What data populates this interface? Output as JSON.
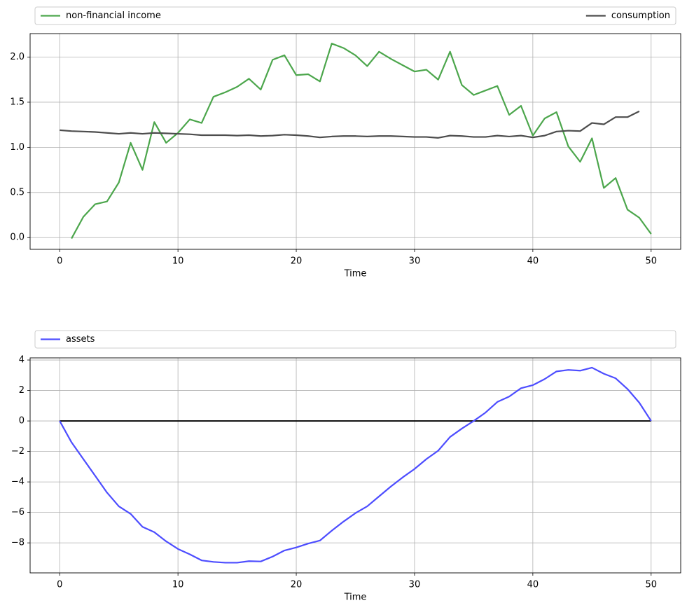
{
  "chart_data": [
    {
      "type": "line",
      "xlabel": "Time",
      "grid": true,
      "legend": "above-expand",
      "xlim": [
        -2.5,
        52.5
      ],
      "xticks": [
        0,
        10,
        20,
        30,
        40,
        50
      ],
      "ylim": [
        -0.13,
        2.26
      ],
      "yticks": [
        {
          "value": 0,
          "label": "0.0"
        },
        0.5,
        {
          "value": 1,
          "label": "1.0"
        },
        1.5,
        {
          "value": 2,
          "label": "2.0"
        }
      ],
      "x": [
        0,
        1,
        2,
        3,
        4,
        5,
        6,
        7,
        8,
        9,
        10,
        11,
        12,
        13,
        14,
        15,
        16,
        17,
        18,
        19,
        20,
        21,
        22,
        23,
        24,
        25,
        26,
        27,
        28,
        29,
        30,
        31,
        32,
        33,
        34,
        35,
        36,
        37,
        38,
        39,
        40,
        41,
        42,
        43,
        44,
        45,
        46,
        47,
        48,
        49,
        50
      ],
      "series": [
        {
          "name": "non-financial income",
          "color": "#4ca64c",
          "values": [
            null,
            -0.01,
            0.23,
            0.37,
            0.4,
            0.61,
            1.05,
            0.75,
            1.28,
            1.05,
            1.16,
            1.31,
            1.27,
            1.56,
            1.61,
            1.67,
            1.76,
            1.64,
            1.97,
            2.02,
            1.8,
            1.81,
            1.73,
            2.15,
            2.1,
            2.02,
            1.9,
            2.06,
            1.98,
            1.91,
            1.84,
            1.86,
            1.75,
            2.06,
            1.69,
            1.58,
            1.63,
            1.68,
            1.36,
            1.46,
            1.13,
            1.32,
            1.39,
            1.01,
            0.84,
            1.1,
            0.55,
            0.66,
            0.31,
            0.22,
            0.04
          ]
        },
        {
          "name": "consumption",
          "color": "#4d4d4d",
          "values": [
            1.19,
            1.18,
            1.175,
            1.17,
            1.16,
            1.15,
            1.16,
            1.15,
            1.16,
            1.155,
            1.15,
            1.145,
            1.135,
            1.135,
            1.135,
            1.13,
            1.135,
            1.125,
            1.13,
            1.14,
            1.135,
            1.125,
            1.11,
            1.12,
            1.125,
            1.125,
            1.12,
            1.125,
            1.125,
            1.12,
            1.115,
            1.115,
            1.105,
            1.13,
            1.125,
            1.115,
            1.115,
            1.13,
            1.12,
            1.13,
            1.11,
            1.13,
            1.175,
            1.185,
            1.18,
            1.27,
            1.255,
            1.335,
            1.335,
            1.4,
            null
          ]
        }
      ]
    },
    {
      "type": "line",
      "xlabel": "Time",
      "grid": true,
      "legend": "above-expand",
      "xlim": [
        -2.5,
        52.5
      ],
      "xticks": [
        0,
        10,
        20,
        30,
        40,
        50
      ],
      "ylim": [
        -9.97,
        4.14
      ],
      "yticks": [
        {
          "value": -8,
          "label": "−8"
        },
        {
          "value": -6,
          "label": "−6"
        },
        {
          "value": -4,
          "label": "−4"
        },
        {
          "value": -2,
          "label": "−2"
        },
        0,
        2,
        4
      ],
      "x": [
        0,
        1,
        2,
        3,
        4,
        5,
        6,
        7,
        8,
        9,
        10,
        11,
        12,
        13,
        14,
        15,
        16,
        17,
        18,
        19,
        20,
        21,
        22,
        23,
        24,
        25,
        26,
        27,
        28,
        29,
        30,
        31,
        32,
        33,
        34,
        35,
        36,
        37,
        38,
        39,
        40,
        41,
        42,
        43,
        44,
        45,
        46,
        47,
        48,
        49,
        50
      ],
      "hlines": [
        {
          "y": 0,
          "x": [
            0,
            50
          ],
          "color": "#000000"
        }
      ],
      "series": [
        {
          "name": "assets",
          "color": "#4d4dff",
          "values": [
            0,
            -1.4,
            -2.5,
            -3.6,
            -4.7,
            -5.6,
            -6.1,
            -6.95,
            -7.3,
            -7.9,
            -8.4,
            -8.75,
            -9.15,
            -9.25,
            -9.3,
            -9.3,
            -9.2,
            -9.22,
            -8.9,
            -8.5,
            -8.3,
            -8.05,
            -7.85,
            -7.2,
            -6.6,
            -6.05,
            -5.6,
            -4.95,
            -4.3,
            -3.7,
            -3.15,
            -2.5,
            -1.95,
            -1.05,
            -0.5,
            0.0,
            0.55,
            1.25,
            1.6,
            2.15,
            2.35,
            2.75,
            3.25,
            3.35,
            3.3,
            3.5,
            3.1,
            2.8,
            2.1,
            1.2,
            0.0
          ]
        }
      ]
    }
  ]
}
